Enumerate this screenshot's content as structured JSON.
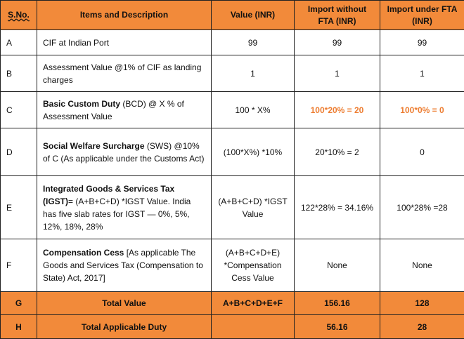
{
  "table": {
    "header_color": "#f28a3a",
    "total_color": "#f28a3a",
    "highlight_color": "#ed7d31",
    "header": [
      "S.No.",
      "Items and Description",
      "Value (INR)",
      "Import without FTA (INR)",
      "Import under FTA (INR)"
    ],
    "rows": [
      {
        "sno": "A",
        "item": [
          {
            "text": "CIF at Indian Port"
          }
        ],
        "value": "99",
        "without_fta": "99",
        "under_fta": "99"
      },
      {
        "sno": "B",
        "item": [
          {
            "text": "Assessment Value @1% of CIF as landing charges"
          }
        ],
        "value": "1",
        "without_fta": "1",
        "under_fta": "1"
      },
      {
        "sno": "C",
        "item": [
          {
            "text": "Basic Custom Duty",
            "bold": true
          },
          {
            "text": " (BCD) @ X % of Assessment Value"
          }
        ],
        "value": "100 * X%",
        "without_fta": "100*20% = 20",
        "under_fta": "100*0% = 0",
        "highlight": [
          "without_fta",
          "under_fta"
        ]
      },
      {
        "sno": "D",
        "item": [
          {
            "text": "Social Welfare Surcharge",
            "bold": true
          },
          {
            "text": " (SWS) @10% of C (As applicable under the Customs Act)"
          }
        ],
        "value": "(100*X%) *10%",
        "without_fta": "20*10% = 2",
        "under_fta": "0"
      },
      {
        "sno": "E",
        "item": [
          {
            "text": "Integrated Goods & Services Tax (IGST)",
            "bold": true
          },
          {
            "text": "= (A+B+C+D) *IGST Value. India has five slab rates for IGST — 0%, 5%, 12%, 18%, 28%"
          }
        ],
        "value": "(A+B+C+D) *IGST Value",
        "without_fta": "122*28% = 34.16%",
        "under_fta": "100*28% =28"
      },
      {
        "sno": "F",
        "item": [
          {
            "text": "Compensation Cess",
            "bold": true
          },
          {
            "text": " [As applicable The Goods and Services Tax (Compensation to State) Act, 2017]"
          }
        ],
        "value": "(A+B+C+D+E) *Compensation Cess Value",
        "without_fta": "None",
        "under_fta": "None"
      },
      {
        "sno": "G",
        "item": [
          {
            "text": "Total Value"
          }
        ],
        "value": "A+B+C+D+E+F",
        "without_fta": "156.16",
        "under_fta": "128",
        "total": true
      },
      {
        "sno": "H",
        "item": [
          {
            "text": "Total Applicable Duty"
          }
        ],
        "value": "",
        "without_fta": "56.16",
        "under_fta": "28",
        "total": true
      }
    ]
  }
}
